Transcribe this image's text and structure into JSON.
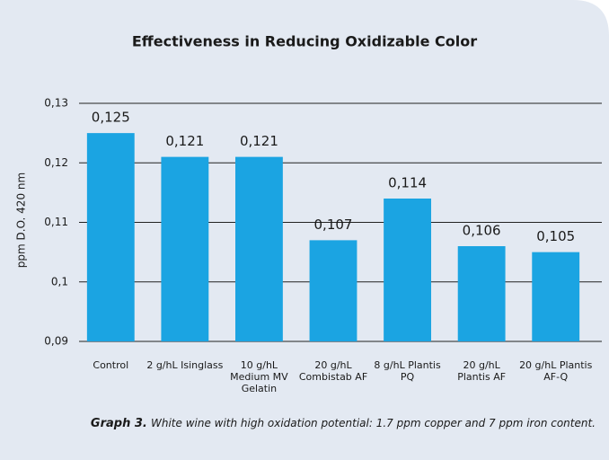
{
  "chart_data": {
    "type": "bar",
    "title": "Effectiveness in Reducing Oxidizable Color",
    "y_label": "ppm D.O. 420 nm",
    "categories": [
      "Control",
      "2 g/hL Isinglass",
      "10 g/hL\nMedium MV\nGelatin",
      "20 g/hL\nCombistab AF",
      "8 g/hL Plantis\nPQ",
      "20 g/hL\nPlantis AF",
      "20 g/hL Plantis\nAF-Q"
    ],
    "values": [
      0.125,
      0.121,
      0.121,
      0.107,
      0.114,
      0.106,
      0.105
    ],
    "value_labels": [
      "0,125",
      "0,121",
      "0,121",
      "0,107",
      "0,114",
      "0,106",
      "0,105"
    ],
    "color": "#1ba4e2",
    "ylim": [
      0.09,
      0.13
    ],
    "yticks": [
      {
        "value": 0.09,
        "label": "0,09"
      },
      {
        "value": 0.1,
        "label": "0,1"
      },
      {
        "value": 0.11,
        "label": "0,11"
      },
      {
        "value": 0.12,
        "label": "0,12"
      },
      {
        "value": 0.13,
        "label": "0,13"
      }
    ],
    "grid": true,
    "caption_label": "Graph 3.",
    "caption": "White wine with high oxidation potential: 1.7 ppm copper and 7 ppm iron content."
  }
}
